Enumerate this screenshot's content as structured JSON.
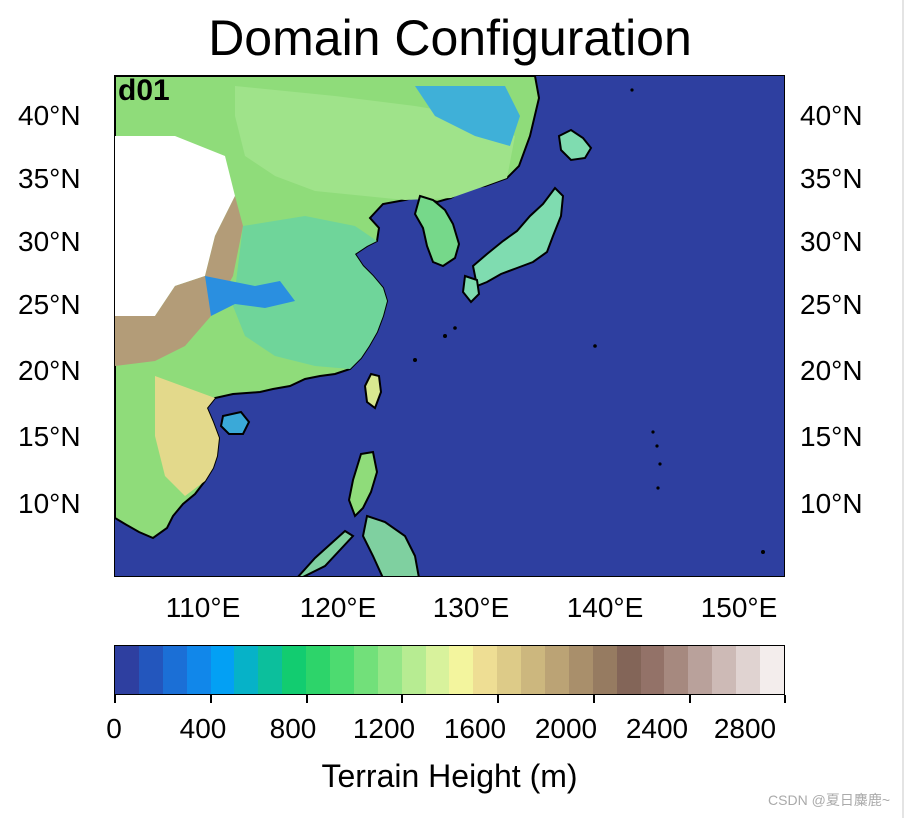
{
  "title": "Domain Configuration",
  "panel_label": "d01",
  "map": {
    "ocean_color": "#2e3fa0",
    "lat_labels": [
      "40°N",
      "35°N",
      "30°N",
      "25°N",
      "20°N",
      "15°N",
      "10°N"
    ],
    "lon_labels": [
      "110°E",
      "120°E",
      "130°E",
      "140°E",
      "150°E"
    ]
  },
  "colorbar": {
    "label": "Terrain Height (m)",
    "ticks": [
      "0",
      "400",
      "800",
      "1200",
      "1600",
      "2000",
      "2400",
      "2800"
    ],
    "colors": [
      "#2e3fa0",
      "#2356bd",
      "#1b6fd6",
      "#1187ea",
      "#03a0f4",
      "#06b2c8",
      "#0cbf9c",
      "#12cc70",
      "#2dd46a",
      "#4ddb70",
      "#72e07a",
      "#95e687",
      "#b7ec92",
      "#d8f29c",
      "#f3f59e",
      "#eede94",
      "#ddcb88",
      "#ccb77e",
      "#bba375",
      "#a98f6b",
      "#967b61",
      "#836558",
      "#937268",
      "#a6897f",
      "#b9a19b",
      "#cdbab6",
      "#e0d3d1",
      "#f3edec"
    ]
  },
  "watermark": "CSDN @夏日麋鹿~"
}
